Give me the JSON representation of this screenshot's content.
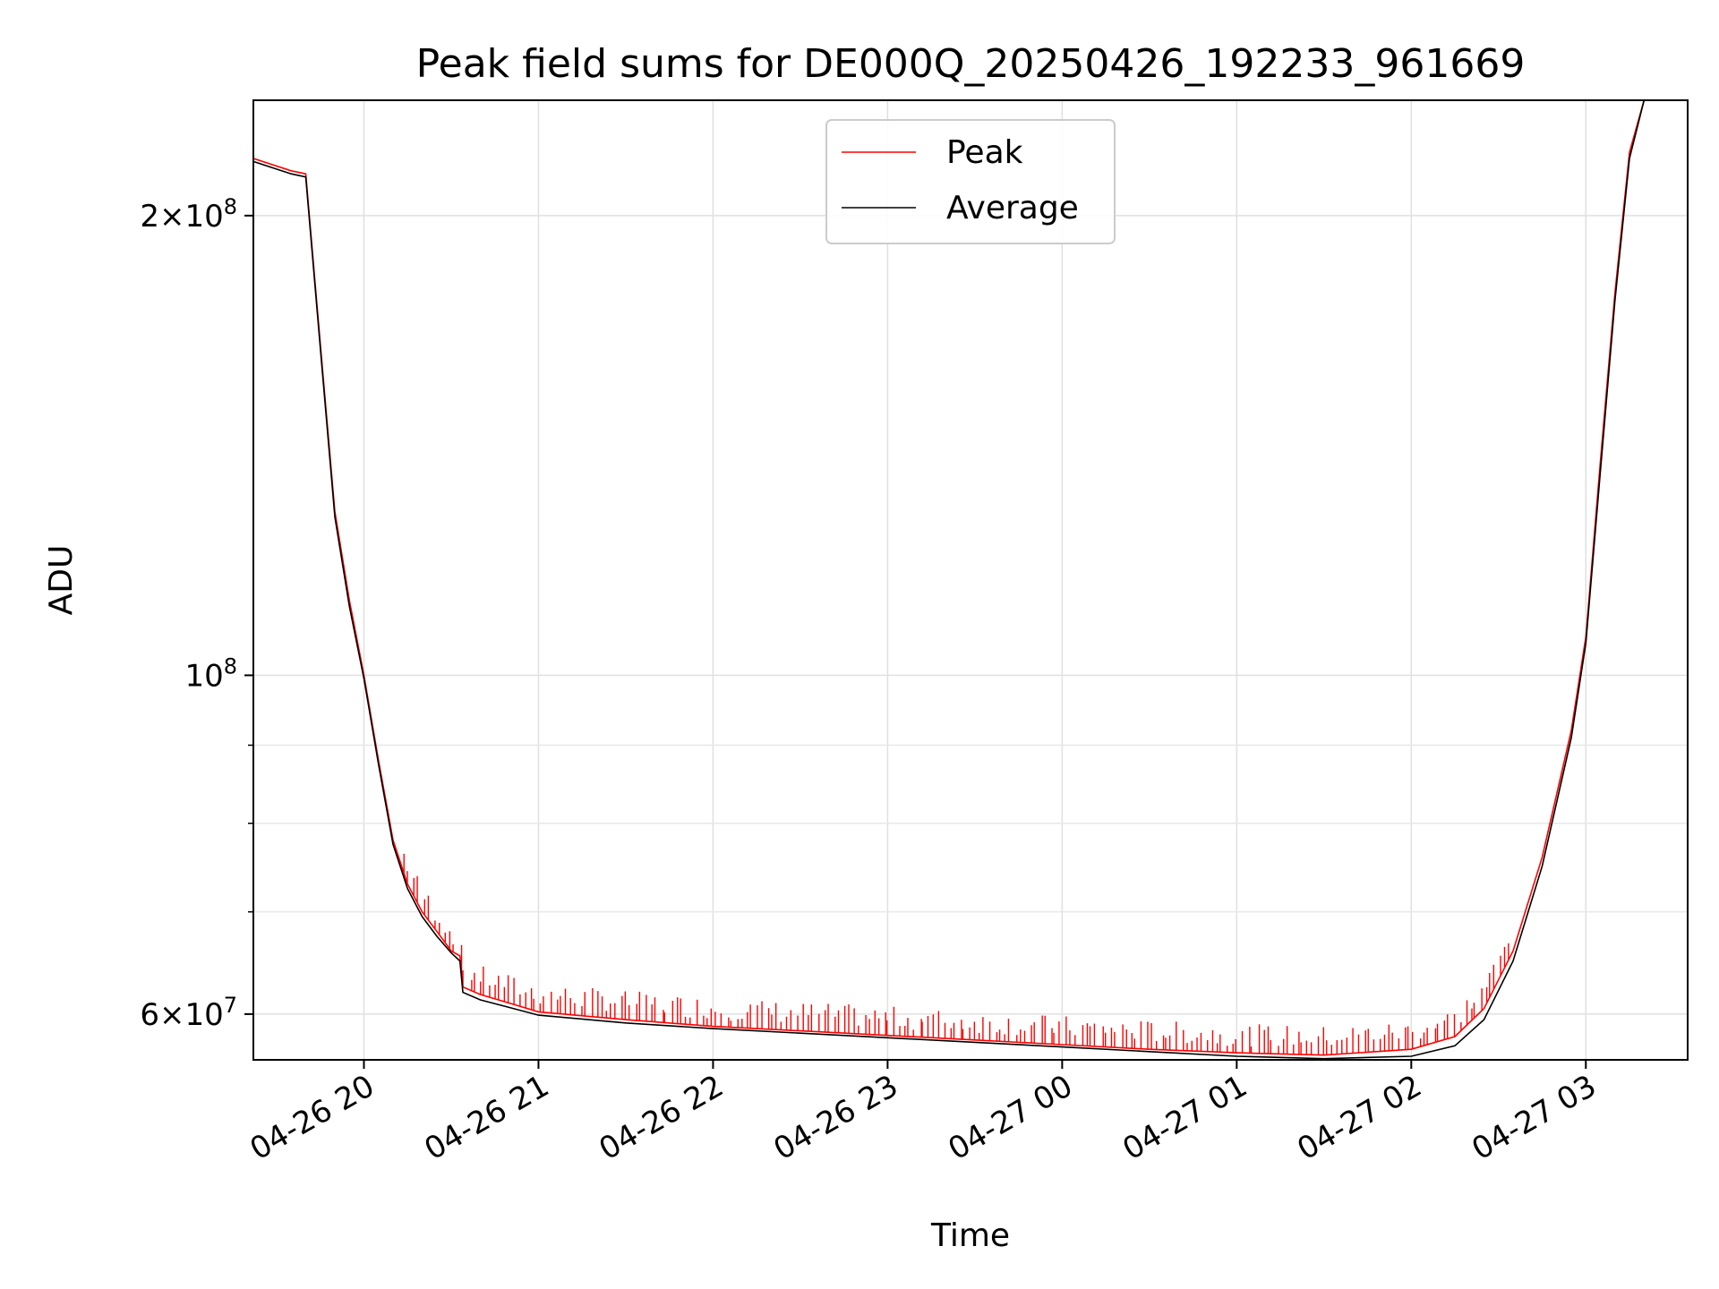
{
  "chart_data": {
    "type": "line",
    "title": "Peak field sums for DE000Q_20250426_192233_961669",
    "xlabel": "Time",
    "ylabel": "ADU",
    "yscale": "log",
    "xlim": [
      "2025-04-26 19:22",
      "2025-04-27 03:35"
    ],
    "ylim": [
      56000000,
      238000000
    ],
    "grid": true,
    "legend_position": "upper center",
    "x_ticks": [
      "04-26 20",
      "04-26 21",
      "04-26 22",
      "04-26 23",
      "04-27 00",
      "04-27 01",
      "04-27 02",
      "04-27 03"
    ],
    "y_major_ticks": [
      {
        "value": 60000000,
        "label_mantissa": "6",
        "label_base": "10",
        "label_exp": "7"
      },
      {
        "value": 100000000,
        "label_mantissa": "",
        "label_base": "10",
        "label_exp": "8"
      },
      {
        "value": 200000000,
        "label_mantissa": "2",
        "label_base": "10",
        "label_exp": "8"
      }
    ],
    "y_minor_ticks": [
      70000000,
      80000000,
      90000000
    ],
    "series": [
      {
        "name": "Peak",
        "color": "#ff0000",
        "x": [
          "2025-04-26 19:22",
          "2025-04-26 19:35",
          "2025-04-26 19:40",
          "2025-04-26 19:45",
          "2025-04-26 19:50",
          "2025-04-26 19:55",
          "2025-04-26 20:00",
          "2025-04-26 20:05",
          "2025-04-26 20:10",
          "2025-04-26 20:15",
          "2025-04-26 20:20",
          "2025-04-26 20:25",
          "2025-04-26 20:30",
          "2025-04-26 20:33",
          "2025-04-26 20:34",
          "2025-04-26 20:40",
          "2025-04-26 20:50",
          "2025-04-26 21:00",
          "2025-04-26 21:30",
          "2025-04-26 22:00",
          "2025-04-26 22:30",
          "2025-04-26 23:00",
          "2025-04-26 23:30",
          "2025-04-27 00:00",
          "2025-04-27 00:30",
          "2025-04-27 01:00",
          "2025-04-27 01:30",
          "2025-04-27 02:00",
          "2025-04-27 02:15",
          "2025-04-27 02:25",
          "2025-04-27 02:35",
          "2025-04-27 02:45",
          "2025-04-27 02:55",
          "2025-04-27 03:00",
          "2025-04-27 03:05",
          "2025-04-27 03:10",
          "2025-04-27 03:15",
          "2025-04-27 03:20"
        ],
        "y": [
          218000000,
          214000000,
          213000000,
          165000000,
          128000000,
          112000000,
          100000000,
          88000000,
          78000000,
          73000000,
          70000000,
          68000000,
          66000000,
          65500000,
          62500000,
          61800000,
          61000000,
          60200000,
          59500000,
          58900000,
          58500000,
          58100000,
          57700000,
          57300000,
          56900000,
          56600000,
          56400000,
          56900000,
          58000000,
          60500000,
          66000000,
          76000000,
          92000000,
          106000000,
          138000000,
          178000000,
          220000000,
          238000000
        ],
        "spike_count": 220
      },
      {
        "name": "Average",
        "color": "#000000",
        "x": [
          "2025-04-26 19:22",
          "2025-04-26 19:35",
          "2025-04-26 19:40",
          "2025-04-26 19:45",
          "2025-04-26 19:50",
          "2025-04-26 19:55",
          "2025-04-26 20:00",
          "2025-04-26 20:05",
          "2025-04-26 20:10",
          "2025-04-26 20:15",
          "2025-04-26 20:20",
          "2025-04-26 20:25",
          "2025-04-26 20:30",
          "2025-04-26 20:33",
          "2025-04-26 20:34",
          "2025-04-26 20:40",
          "2025-04-26 20:50",
          "2025-04-26 21:00",
          "2025-04-26 21:30",
          "2025-04-26 22:00",
          "2025-04-26 22:30",
          "2025-04-26 23:00",
          "2025-04-26 23:30",
          "2025-04-27 00:00",
          "2025-04-27 00:30",
          "2025-04-27 01:00",
          "2025-04-27 01:30",
          "2025-04-27 02:00",
          "2025-04-27 02:15",
          "2025-04-27 02:25",
          "2025-04-27 02:35",
          "2025-04-27 02:45",
          "2025-04-27 02:55",
          "2025-04-27 03:00",
          "2025-04-27 03:05",
          "2025-04-27 03:10",
          "2025-04-27 03:15",
          "2025-04-27 03:20"
        ],
        "y": [
          217000000,
          213000000,
          212000000,
          164000000,
          127000000,
          111000000,
          99500000,
          87500000,
          77500000,
          72500000,
          69500000,
          67500000,
          65800000,
          65000000,
          62000000,
          61300000,
          60600000,
          59900000,
          59200000,
          58700000,
          58300000,
          57900000,
          57500000,
          57100000,
          56700000,
          56300000,
          56100000,
          56300000,
          57200000,
          59500000,
          65000000,
          75000000,
          91000000,
          105000000,
          136000000,
          176000000,
          218000000,
          238000000
        ]
      }
    ]
  }
}
